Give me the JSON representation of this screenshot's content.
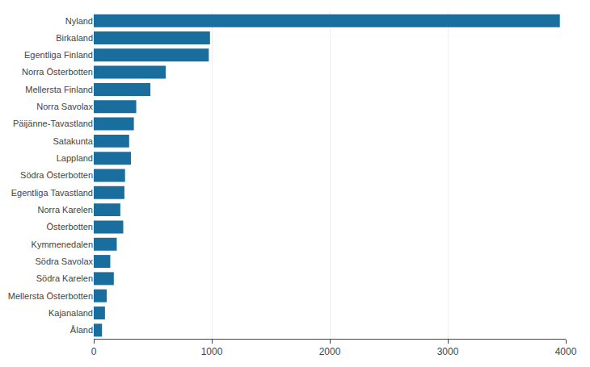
{
  "chart_data": {
    "type": "bar",
    "orientation": "horizontal",
    "categories": [
      "Nyland",
      "Birkaland",
      "Egentliga Finland",
      "Norra Österbotten",
      "Mellersta Finland",
      "Norra Savolax",
      "Päijänne-Tavastland",
      "Satakunta",
      "Lappland",
      "Södra Österbotten",
      "Egentliga Tavastland",
      "Norra Karelen",
      "Österbotten",
      "Kymmenedalen",
      "Södra Savolax",
      "Södra Karelen",
      "Mellersta Österbotten",
      "Kajanaland",
      "Åland"
    ],
    "values": [
      3950,
      985,
      975,
      610,
      480,
      360,
      340,
      300,
      315,
      265,
      260,
      225,
      250,
      195,
      140,
      170,
      110,
      95,
      70
    ],
    "color": "#1a6e9e",
    "xlim": [
      0,
      4000
    ],
    "xticks": [
      0,
      1000,
      2000,
      3000,
      4000
    ],
    "grid": true
  }
}
